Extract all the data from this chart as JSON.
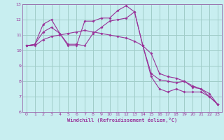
{
  "xlabel": "Windchill (Refroidissement éolien,°C)",
  "background_color": "#c8eef0",
  "grid_color": "#a0ccc8",
  "line_color": "#993399",
  "spine_color": "#9966aa",
  "xlim": [
    -0.5,
    23.5
  ],
  "ylim": [
    6,
    13
  ],
  "xticks": [
    0,
    1,
    2,
    3,
    4,
    5,
    6,
    7,
    8,
    9,
    10,
    11,
    12,
    13,
    14,
    15,
    16,
    17,
    18,
    19,
    20,
    21,
    22,
    23
  ],
  "yticks": [
    6,
    7,
    8,
    9,
    10,
    11,
    12,
    13
  ],
  "line1_x": [
    0,
    1,
    2,
    3,
    4,
    5,
    6,
    7,
    8,
    9,
    10,
    11,
    12,
    13,
    14,
    15,
    16,
    17,
    18,
    19,
    20,
    21,
    22,
    23
  ],
  "line1_y": [
    10.3,
    10.4,
    11.7,
    12.0,
    11.1,
    10.3,
    10.3,
    11.9,
    11.9,
    12.1,
    12.1,
    12.6,
    12.9,
    12.5,
    10.3,
    8.3,
    7.5,
    7.3,
    7.5,
    7.3,
    7.3,
    7.3,
    7.0,
    6.5
  ],
  "line2_x": [
    0,
    1,
    2,
    3,
    4,
    5,
    6,
    7,
    8,
    9,
    10,
    11,
    12,
    13,
    14,
    15,
    16,
    17,
    18,
    19,
    20,
    21,
    22,
    23
  ],
  "line2_y": [
    10.3,
    10.4,
    11.2,
    11.5,
    11.1,
    10.4,
    10.4,
    10.3,
    11.1,
    11.5,
    11.9,
    12.0,
    12.1,
    12.5,
    10.3,
    8.5,
    8.1,
    8.0,
    7.9,
    8.0,
    7.6,
    7.5,
    7.0,
    6.5
  ],
  "line3_x": [
    0,
    1,
    2,
    3,
    4,
    5,
    6,
    7,
    8,
    9,
    10,
    11,
    12,
    13,
    14,
    15,
    16,
    17,
    18,
    19,
    20,
    21,
    22,
    23
  ],
  "line3_y": [
    10.3,
    10.3,
    10.7,
    10.9,
    11.0,
    11.1,
    11.2,
    11.3,
    11.2,
    11.1,
    11.0,
    10.9,
    10.8,
    10.6,
    10.3,
    9.8,
    8.5,
    8.3,
    8.2,
    8.0,
    7.7,
    7.5,
    7.2,
    6.5
  ]
}
